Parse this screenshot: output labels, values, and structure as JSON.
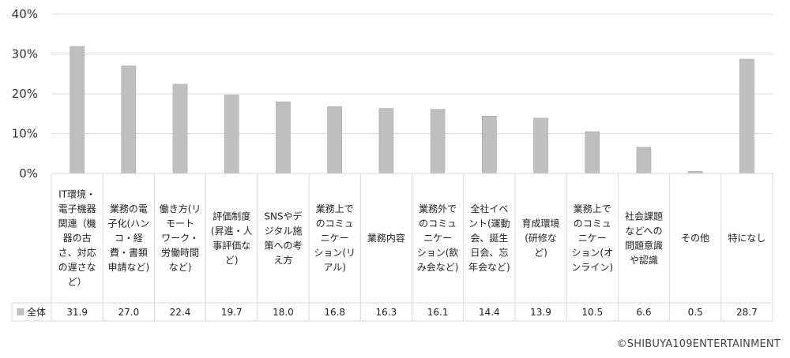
{
  "chart_data": {
    "type": "bar",
    "categories": [
      [
        "IT環境・",
        "電子機器",
        "関連（機",
        "器の古",
        "さ、対応",
        "の遅さな",
        "ど）"
      ],
      [
        "業務の電",
        "子化(ハン",
        "コ・経",
        "費・書類",
        "申請など)"
      ],
      [
        "働き方(リ",
        "モート",
        "ワーク・",
        "労働時間",
        "など)"
      ],
      [
        "評価制度",
        "(昇進・人",
        "事評価な",
        "ど)"
      ],
      [
        "SNSやデ",
        "ジタル施",
        "策への考",
        "え方"
      ],
      [
        "業務上で",
        "のコミュ",
        "ニケー",
        "ション(リ",
        "アル)"
      ],
      [
        "業務内容"
      ],
      [
        "業務外で",
        "のコミュ",
        "ニケー",
        "ション(飲",
        "み会など)"
      ],
      [
        "全社イベ",
        "ント(運動",
        "会、誕生",
        "日会、忘",
        "年会など)"
      ],
      [
        "育成環境",
        "(研修な",
        "ど)"
      ],
      [
        "業務上で",
        "のコミュ",
        "ニケー",
        "ション(オ",
        "ンライン)"
      ],
      [
        "社会課題",
        "などへの",
        "問題意識",
        "や認識"
      ],
      [
        "その他"
      ],
      [
        "特になし"
      ]
    ],
    "series": [
      {
        "name": "全体",
        "values": [
          31.9,
          27.0,
          22.4,
          19.7,
          18.0,
          16.8,
          16.3,
          16.1,
          14.4,
          13.9,
          10.5,
          6.6,
          0.5,
          28.7
        ],
        "labels": [
          "31.9",
          "27.0",
          "22.4",
          "19.7",
          "18.0",
          "16.8",
          "16.3",
          "16.1",
          "14.4",
          "13.9",
          "10.5",
          "6.6",
          "0.5",
          "28.7"
        ]
      }
    ],
    "ylim": [
      0,
      40
    ],
    "yticks": [
      "0%",
      "10%",
      "20%",
      "30%",
      "40%"
    ],
    "grid": true,
    "legend": "table-left",
    "colors": {
      "bar": "#bfbfbf",
      "bar_stroke": "#a6a6a6",
      "grid": "#d9d9d9",
      "table": "#d9d9d9"
    }
  },
  "footer": {
    "copyright": "©SHIBUYA109ENTERTAINMENT"
  }
}
